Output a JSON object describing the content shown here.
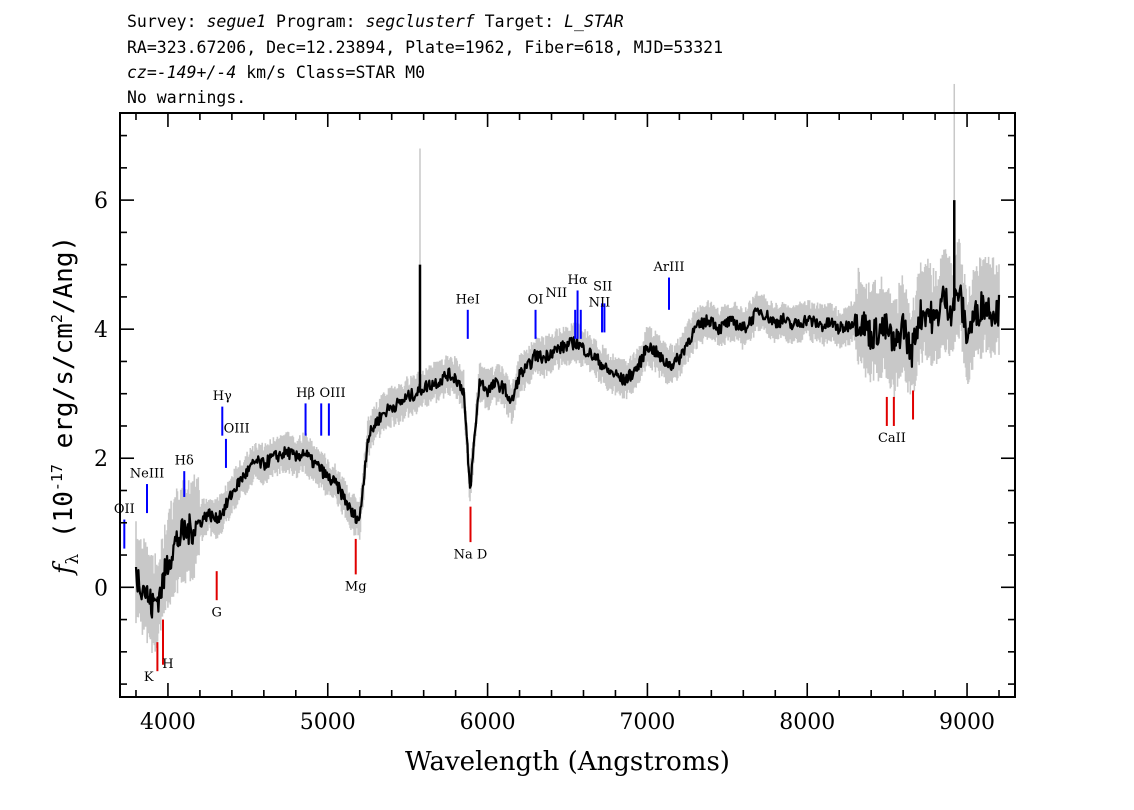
{
  "header": {
    "line1": {
      "survey_label": "Survey: ",
      "survey": "segue1",
      "program_label": " Program: ",
      "program": "segclusterf",
      "target_label": " Target: ",
      "target": "L_STAR"
    },
    "line2": "RA=323.67206, Dec=12.23894, Plate=1962, Fiber=618, MJD=53321",
    "line3": {
      "cz": "cz=-149+/-4",
      "rest": " km/s Class=STAR M0"
    },
    "line4": "No warnings."
  },
  "chart_data": {
    "type": "line",
    "xlabel": "Wavelength (Angstroms)",
    "ylabel": "f_λ (10^-17 erg/s/cm^2/Ang)",
    "xlim": [
      3700,
      9300
    ],
    "ylim": [
      -1.7,
      7.35
    ],
    "x_ticks": [
      4000,
      5000,
      6000,
      7000,
      8000,
      9000
    ],
    "y_ticks": [
      0,
      2,
      4,
      6
    ],
    "x_tick_labels": [
      "4000",
      "5000",
      "6000",
      "7000",
      "8000",
      "9000"
    ],
    "y_tick_labels": [
      "0",
      "2",
      "4",
      "6"
    ],
    "series": [
      {
        "role": "flux",
        "color": "#000000",
        "x": [
          3800,
          3850,
          3900,
          3950,
          4000,
          4050,
          4100,
          4150,
          4200,
          4250,
          4300,
          4350,
          4400,
          4450,
          4500,
          4550,
          4600,
          4650,
          4700,
          4750,
          4800,
          4850,
          4900,
          4950,
          5000,
          5050,
          5100,
          5150,
          5200,
          5250,
          5300,
          5350,
          5400,
          5450,
          5500,
          5550,
          5600,
          5650,
          5700,
          5750,
          5800,
          5850,
          5890,
          5950,
          6000,
          6050,
          6100,
          6150,
          6200,
          6250,
          6300,
          6350,
          6400,
          6450,
          6500,
          6550,
          6600,
          6650,
          6700,
          6750,
          6800,
          6850,
          6900,
          6950,
          7000,
          7050,
          7100,
          7150,
          7200,
          7250,
          7300,
          7350,
          7400,
          7450,
          7500,
          7550,
          7600,
          7650,
          7700,
          7750,
          7800,
          7850,
          7900,
          7950,
          8000,
          8050,
          8100,
          8150,
          8200,
          8250,
          8300,
          8350,
          8400,
          8450,
          8500,
          8550,
          8600,
          8650,
          8700,
          8750,
          8800,
          8850,
          8900,
          8950,
          9000,
          9050,
          9100,
          9150,
          9200
        ],
        "y": [
          0.2,
          0.0,
          -0.3,
          -0.1,
          0.4,
          0.7,
          0.85,
          0.9,
          1.0,
          1.15,
          1.05,
          1.2,
          1.45,
          1.65,
          1.8,
          1.95,
          1.9,
          2.0,
          2.05,
          2.1,
          2.0,
          2.1,
          1.95,
          1.85,
          1.7,
          1.6,
          1.4,
          1.15,
          1.05,
          2.3,
          2.55,
          2.7,
          2.8,
          2.85,
          2.95,
          3.0,
          3.1,
          3.15,
          3.2,
          3.3,
          3.25,
          3.05,
          1.5,
          3.2,
          3.05,
          3.15,
          3.1,
          2.85,
          3.3,
          3.4,
          3.6,
          3.55,
          3.65,
          3.7,
          3.75,
          3.8,
          3.7,
          3.6,
          3.5,
          3.35,
          3.3,
          3.2,
          3.3,
          3.45,
          3.75,
          3.65,
          3.5,
          3.45,
          3.55,
          3.8,
          4.0,
          4.1,
          4.15,
          4.0,
          4.1,
          4.1,
          4.0,
          4.15,
          4.3,
          4.2,
          4.1,
          4.15,
          4.05,
          4.1,
          4.15,
          4.1,
          4.05,
          4.1,
          4.0,
          4.05,
          4.15,
          4.1,
          3.9,
          4.0,
          4.0,
          3.7,
          4.1,
          3.6,
          4.2,
          4.3,
          4.1,
          4.5,
          4.3,
          4.6,
          3.9,
          4.2,
          4.4,
          4.3,
          4.3
        ]
      }
    ],
    "spikes": [
      {
        "x": 5577,
        "y_top": 5.0,
        "y_bottom": 3.1
      },
      {
        "x": 8920,
        "y_top": 6.0,
        "y_bottom": 4.3
      }
    ],
    "lines_blue": [
      {
        "label": "OII",
        "x": 3727,
        "y0": 0.6,
        "y1": 1.05
      },
      {
        "label": "NeIII",
        "x": 3869,
        "y0": 1.15,
        "y1": 1.6
      },
      {
        "label": "Hδ",
        "x": 4102,
        "y0": 1.4,
        "y1": 1.8
      },
      {
        "label": "Hγ",
        "x": 4340,
        "y0": 2.35,
        "y1": 2.8
      },
      {
        "label": "OIII",
        "x": 4363,
        "y0": 1.85,
        "y1": 2.3
      },
      {
        "label": "Hβ",
        "x": 4861,
        "y0": 2.35,
        "y1": 2.85
      },
      {
        "label": "OIII",
        "x": 4959,
        "y0": 2.35,
        "y1": 2.85
      },
      {
        "label": "OIII",
        "x": 5007,
        "y0": 2.35,
        "y1": 2.85
      },
      {
        "label": "HeI",
        "x": 5876,
        "y0": 3.85,
        "y1": 4.3
      },
      {
        "label": "OI",
        "x": 6300,
        "y0": 3.85,
        "y1": 4.3
      },
      {
        "label": "NII",
        "x": 6548,
        "y0": 3.85,
        "y1": 4.3
      },
      {
        "label": "Hα",
        "x": 6563,
        "y0": 3.85,
        "y1": 4.6
      },
      {
        "label": "NII",
        "x": 6583,
        "y0": 3.85,
        "y1": 4.3
      },
      {
        "label": "SII",
        "x": 6716,
        "y0": 3.95,
        "y1": 4.4
      },
      {
        "label": "SII",
        "x": 6731,
        "y0": 3.95,
        "y1": 4.4
      },
      {
        "label": "ArIII",
        "x": 7135,
        "y0": 4.3,
        "y1": 4.8
      }
    ],
    "lines_red": [
      {
        "label": "K",
        "x": 3934,
        "y0": -1.3,
        "y1": -0.85
      },
      {
        "label": "H",
        "x": 3969,
        "y0": -1.2,
        "y1": -0.5
      },
      {
        "label": "G",
        "x": 4305,
        "y0": -0.2,
        "y1": 0.25
      },
      {
        "label": "Mg",
        "x": 5175,
        "y0": 0.2,
        "y1": 0.75
      },
      {
        "label": "Na D",
        "x": 5893,
        "y0": 0.7,
        "y1": 1.25
      },
      {
        "label": "CaII",
        "x": 8498,
        "y0": 2.5,
        "y1": 2.95
      },
      {
        "label": "CaII",
        "x": 8542,
        "y0": 2.5,
        "y1": 2.95
      },
      {
        "label": "CaII",
        "x": 8662,
        "y0": 2.6,
        "y1": 3.05
      }
    ],
    "line_labels": [
      {
        "text": "OII",
        "x": 3727,
        "y": 1.15
      },
      {
        "text": "NeIII",
        "x": 3869,
        "y": 1.7
      },
      {
        "text": "Hδ",
        "x": 4102,
        "y": 1.9
      },
      {
        "text": "Hγ",
        "x": 4340,
        "y": 2.9
      },
      {
        "text": "OIII",
        "x": 4430,
        "y": 2.4
      },
      {
        "text": "Hβ",
        "x": 4861,
        "y": 2.95
      },
      {
        "text": "OIII",
        "x": 5030,
        "y": 2.95
      },
      {
        "text": "HeI",
        "x": 5876,
        "y": 4.4
      },
      {
        "text": "OI",
        "x": 6300,
        "y": 4.4
      },
      {
        "text": "NII",
        "x": 6430,
        "y": 4.5
      },
      {
        "text": "Hα",
        "x": 6563,
        "y": 4.7
      },
      {
        "text": "SII",
        "x": 6720,
        "y": 4.6
      },
      {
        "text": "NII",
        "x": 6700,
        "y": 4.35
      },
      {
        "text": "ArIII",
        "x": 7135,
        "y": 4.9
      },
      {
        "text": "K",
        "x": 3880,
        "y": -1.45
      },
      {
        "text": "H",
        "x": 4000,
        "y": -1.25
      },
      {
        "text": "G",
        "x": 4305,
        "y": -0.45
      },
      {
        "text": "Mg",
        "x": 5175,
        "y": -0.05
      },
      {
        "text": "Na D",
        "x": 5893,
        "y": 0.45
      },
      {
        "text": "CaII",
        "x": 8530,
        "y": 2.25
      }
    ],
    "colors": {
      "flux": "#000000",
      "noise_band": "#c8c8c8",
      "emission": "#0000ff",
      "absorption": "#e00000"
    }
  }
}
